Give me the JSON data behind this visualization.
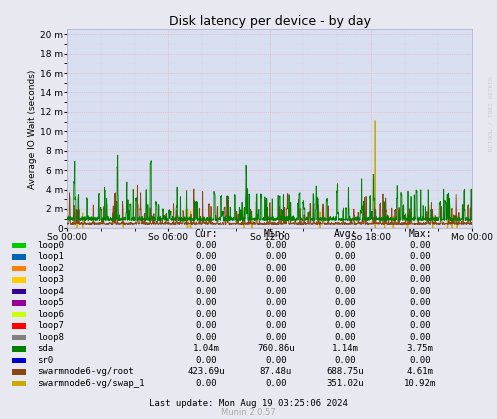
{
  "title": "Disk latency per device - by day",
  "ylabel": "Average IO Wait (seconds)",
  "background_color": "#e8e8f0",
  "plot_bg_color": "#d8dff0",
  "grid_color_major": "#ff9999",
  "grid_color_minor": "#ddaaaa",
  "y_ticks_labels": [
    "0",
    "2 m",
    "4 m",
    "6 m",
    "8 m",
    "10 m",
    "12 m",
    "14 m",
    "16 m",
    "18 m",
    "20 m"
  ],
  "y_ticks_values": [
    0,
    0.002,
    0.004,
    0.006,
    0.008,
    0.01,
    0.012,
    0.014,
    0.016,
    0.018,
    0.02
  ],
  "x_tick_labels": [
    "So 00:00",
    "So 06:00",
    "So 12:00",
    "So 18:00",
    "Mo 00:00"
  ],
  "ylim": [
    0,
    0.0205
  ],
  "watermark": "RDTOOL / TOBI OETKER",
  "footer": "Last update: Mon Aug 19 03:25:06 2024",
  "munin_version": "Munin 2.0.57",
  "col_headers": [
    "Cur:",
    "Min:",
    "Avg:",
    "Max:"
  ],
  "legend_entries": [
    {
      "label": "loop0",
      "color": "#00cc00",
      "cur": "0.00",
      "min": "0.00",
      "avg": "0.00",
      "max": "0.00"
    },
    {
      "label": "loop1",
      "color": "#0066b3",
      "cur": "0.00",
      "min": "0.00",
      "avg": "0.00",
      "max": "0.00"
    },
    {
      "label": "loop2",
      "color": "#ff8000",
      "cur": "0.00",
      "min": "0.00",
      "avg": "0.00",
      "max": "0.00"
    },
    {
      "label": "loop3",
      "color": "#ffcc00",
      "cur": "0.00",
      "min": "0.00",
      "avg": "0.00",
      "max": "0.00"
    },
    {
      "label": "loop4",
      "color": "#330099",
      "cur": "0.00",
      "min": "0.00",
      "avg": "0.00",
      "max": "0.00"
    },
    {
      "label": "loop5",
      "color": "#990099",
      "cur": "0.00",
      "min": "0.00",
      "avg": "0.00",
      "max": "0.00"
    },
    {
      "label": "loop6",
      "color": "#ccff00",
      "cur": "0.00",
      "min": "0.00",
      "avg": "0.00",
      "max": "0.00"
    },
    {
      "label": "loop7",
      "color": "#ff0000",
      "cur": "0.00",
      "min": "0.00",
      "avg": "0.00",
      "max": "0.00"
    },
    {
      "label": "loop8",
      "color": "#808080",
      "cur": "0.00",
      "min": "0.00",
      "avg": "0.00",
      "max": "0.00"
    },
    {
      "label": "sda",
      "color": "#008000",
      "cur": "1.04m",
      "min": "760.86u",
      "avg": "1.14m",
      "max": "3.75m"
    },
    {
      "label": "sr0",
      "color": "#0000cc",
      "cur": "0.00",
      "min": "0.00",
      "avg": "0.00",
      "max": "0.00"
    },
    {
      "label": "swarmnode6-vg/root",
      "color": "#8b4513",
      "cur": "423.69u",
      "min": "87.48u",
      "avg": "688.75u",
      "max": "4.61m"
    },
    {
      "label": "swarmnode6-vg/swap_1",
      "color": "#ccaa00",
      "cur": "0.00",
      "min": "0.00",
      "avg": "351.02u",
      "max": "10.92m"
    }
  ]
}
